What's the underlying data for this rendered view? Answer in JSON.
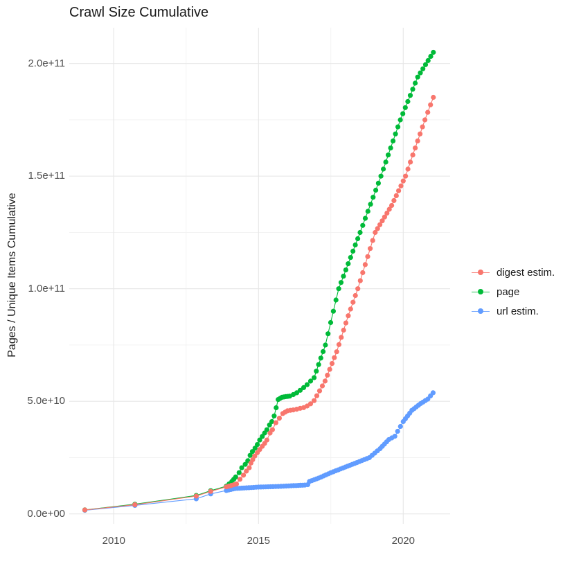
{
  "title": "Crawl Size Cumulative",
  "y_axis": {
    "label": "Pages / Unique Items Cumulative",
    "ticks": [
      {
        "label": "0.0e+00",
        "value_e9": 0
      },
      {
        "label": "5.0e+10",
        "value_e9": 50
      },
      {
        "label": "1.0e+11",
        "value_e9": 100
      },
      {
        "label": "1.5e+11",
        "value_e9": 150
      },
      {
        "label": "2.0e+11",
        "value_e9": 200
      }
    ],
    "minor_e9": [
      25,
      75,
      125,
      175
    ]
  },
  "x_axis": {
    "ticks": [
      {
        "label": "2010",
        "value": 2010
      },
      {
        "label": "2015",
        "value": 2015
      },
      {
        "label": "2020",
        "value": 2020
      }
    ],
    "minor": [
      2012.5,
      2017.5
    ]
  },
  "legend": {
    "items": [
      {
        "label": "digest estim.",
        "color": "#F8766D"
      },
      {
        "label": "page",
        "color": "#00BA38"
      },
      {
        "label": "url estim.",
        "color": "#619CFF"
      }
    ]
  },
  "colors": {
    "digest": "#F8766D",
    "page": "#00BA38",
    "url": "#619CFF",
    "grid_major": "#E7E7E7",
    "grid_minor": "#F1F1F1",
    "tick_text": "#4d4d4d",
    "title_text": "#1a1a1a"
  },
  "chart_data": {
    "type": "line",
    "title": "Crawl Size Cumulative",
    "xlabel": "",
    "ylabel": "Pages / Unique Items Cumulative",
    "xlim": [
      2008.5,
      2021.65
    ],
    "ylim_e9": [
      0,
      215
    ],
    "x_ticks": [
      2010,
      2015,
      2020
    ],
    "y_ticks_e9": [
      0,
      50,
      100,
      150,
      200
    ],
    "grid": true,
    "legend_position": "right",
    "marker": "point",
    "value_unit": "pages (values in billions, 1e9)",
    "dense_from_year": 2013.8,
    "monthly_step_years": 0.085,
    "series": [
      {
        "name": "url estim.",
        "color": "#619CFF",
        "points": [
          [
            2009.0,
            1.6
          ],
          [
            2010.73,
            3.8
          ],
          [
            2012.85,
            6.7
          ],
          [
            2013.35,
            8.9
          ],
          [
            2013.89,
            10.4
          ],
          [
            2014.2,
            11.3
          ],
          [
            2014.5,
            11.5
          ],
          [
            2015.0,
            11.9
          ],
          [
            2015.5,
            12.1
          ],
          [
            2015.87,
            12.3
          ],
          [
            2016.3,
            12.6
          ],
          [
            2016.6,
            12.8
          ],
          [
            2016.7,
            13.0
          ],
          [
            2016.76,
            14.4
          ],
          [
            2017.08,
            15.9
          ],
          [
            2017.5,
            18.3
          ],
          [
            2018.0,
            20.8
          ],
          [
            2018.4,
            22.8
          ],
          [
            2018.83,
            25.0
          ],
          [
            2019.2,
            29.0
          ],
          [
            2019.5,
            33.0
          ],
          [
            2019.71,
            34.5
          ],
          [
            2020.0,
            41.0
          ],
          [
            2020.3,
            46.0
          ],
          [
            2020.6,
            49.0
          ],
          [
            2020.85,
            51.0
          ],
          [
            2021.03,
            53.8
          ]
        ]
      },
      {
        "name": "page",
        "color": "#00BA38",
        "points": [
          [
            2009.0,
            1.8
          ],
          [
            2010.73,
            4.3
          ],
          [
            2012.85,
            8.2
          ],
          [
            2013.35,
            10.3
          ],
          [
            2013.89,
            12.3
          ],
          [
            2014.08,
            14.4
          ],
          [
            2014.21,
            16.4
          ],
          [
            2014.33,
            18.3
          ],
          [
            2014.42,
            20.5
          ],
          [
            2014.54,
            22.0
          ],
          [
            2014.63,
            23.6
          ],
          [
            2014.71,
            26.0
          ],
          [
            2014.79,
            27.7
          ],
          [
            2014.88,
            29.2
          ],
          [
            2014.96,
            30.8
          ],
          [
            2015.04,
            32.8
          ],
          [
            2015.13,
            34.4
          ],
          [
            2015.21,
            35.9
          ],
          [
            2015.29,
            37.4
          ],
          [
            2015.38,
            39.5
          ],
          [
            2015.46,
            41.0
          ],
          [
            2015.54,
            43.5
          ],
          [
            2015.68,
            50.8
          ],
          [
            2015.81,
            51.8
          ],
          [
            2015.94,
            52.1
          ],
          [
            2016.08,
            52.3
          ],
          [
            2016.2,
            53.0
          ],
          [
            2016.32,
            53.8
          ],
          [
            2016.44,
            54.9
          ],
          [
            2016.56,
            56.1
          ],
          [
            2016.68,
            57.4
          ],
          [
            2016.8,
            59.0
          ],
          [
            2016.92,
            60.5
          ],
          [
            2017.31,
            75.0
          ],
          [
            2017.77,
            100.0
          ],
          [
            2018.51,
            125.0
          ],
          [
            2019.23,
            150.0
          ],
          [
            2019.9,
            175.0
          ],
          [
            2020.5,
            194.0
          ],
          [
            2021.04,
            205.0
          ]
        ]
      },
      {
        "name": "digest estim.",
        "color": "#F8766D",
        "points": [
          [
            2009.0,
            1.75
          ],
          [
            2010.73,
            4.1
          ],
          [
            2012.85,
            7.9
          ],
          [
            2013.35,
            10.0
          ],
          [
            2013.89,
            12.0
          ],
          [
            2014.24,
            13.3
          ],
          [
            2014.36,
            15.4
          ],
          [
            2014.48,
            17.2
          ],
          [
            2014.58,
            19.0
          ],
          [
            2014.68,
            20.5
          ],
          [
            2014.74,
            22.6
          ],
          [
            2014.8,
            24.1
          ],
          [
            2014.87,
            25.7
          ],
          [
            2014.96,
            27.2
          ],
          [
            2015.04,
            28.6
          ],
          [
            2015.13,
            30.0
          ],
          [
            2015.21,
            31.3
          ],
          [
            2015.29,
            32.8
          ],
          [
            2015.4,
            35.9
          ],
          [
            2015.48,
            37.4
          ],
          [
            2015.6,
            40.5
          ],
          [
            2015.72,
            42.5
          ],
          [
            2015.84,
            44.6
          ],
          [
            2016.0,
            45.8
          ],
          [
            2016.2,
            46.2
          ],
          [
            2016.32,
            46.5
          ],
          [
            2016.44,
            46.9
          ],
          [
            2016.56,
            47.2
          ],
          [
            2016.68,
            47.9
          ],
          [
            2016.8,
            48.9
          ],
          [
            2016.92,
            50.3
          ],
          [
            2017.3,
            59.0
          ],
          [
            2017.7,
            72.0
          ],
          [
            2018.1,
            88.0
          ],
          [
            2018.43,
            100.0
          ],
          [
            2019.03,
            125.0
          ],
          [
            2019.6,
            137.0
          ],
          [
            2020.08,
            150.0
          ],
          [
            2020.75,
            175.0
          ],
          [
            2021.04,
            185.0
          ]
        ]
      }
    ]
  }
}
